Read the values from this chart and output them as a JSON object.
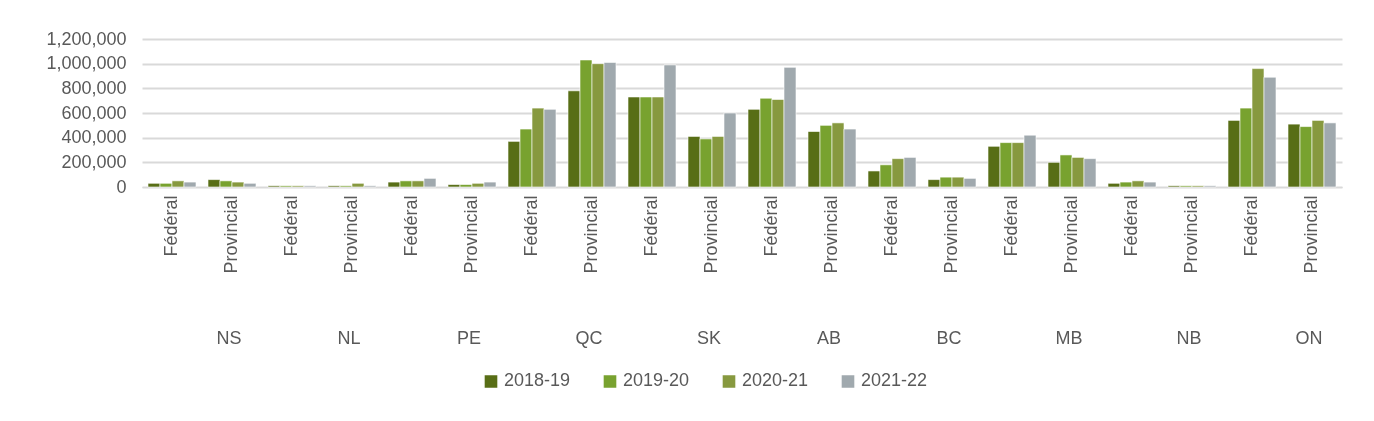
{
  "chart_data": {
    "type": "bar",
    "categories": [
      "Fédéral",
      "Provincial",
      "Fédéral",
      "Provincial",
      "Fédéral",
      "Provincial",
      "Fédéral",
      "Provincial",
      "Fédéral",
      "Provincial",
      "Fédéral",
      "Provincial",
      "Fédéral",
      "Provincial",
      "Fédéral",
      "Provincial",
      "Fédéral",
      "Provincial",
      "Fédéral",
      "Provincial"
    ],
    "annotations": [
      "NS",
      "NL",
      "PE",
      "QC",
      "SK",
      "AB",
      "BC",
      "MB",
      "NB",
      "ON"
    ],
    "series": [
      {
        "name": "2018-19",
        "color": "#586e16",
        "values": [
          30000,
          60000,
          10000,
          10000,
          40000,
          20000,
          370000,
          780000,
          730000,
          410000,
          630000,
          450000,
          130000,
          60000,
          330000,
          200000,
          30000,
          10000,
          540000,
          510000
        ]
      },
      {
        "name": "2019-20",
        "color": "#78a22f",
        "values": [
          30000,
          50000,
          10000,
          10000,
          50000,
          20000,
          470000,
          1030000,
          730000,
          390000,
          720000,
          500000,
          180000,
          80000,
          360000,
          260000,
          40000,
          10000,
          640000,
          490000
        ]
      },
      {
        "name": "2020-21",
        "color": "#87993f",
        "values": [
          50000,
          40000,
          10000,
          30000,
          50000,
          30000,
          640000,
          1000000,
          730000,
          410000,
          710000,
          520000,
          230000,
          80000,
          360000,
          240000,
          50000,
          10000,
          960000,
          540000
        ]
      },
      {
        "name": "2021-22",
        "color": "#a0a9ae",
        "values": [
          40000,
          30000,
          10000,
          10000,
          70000,
          40000,
          630000,
          1010000,
          990000,
          600000,
          970000,
          470000,
          240000,
          70000,
          420000,
          230000,
          40000,
          10000,
          890000,
          520000
        ]
      }
    ],
    "ylim": [
      0,
      1200000
    ],
    "yticks": [
      0,
      {
        "value": 200000,
        "label": "200,000"
      },
      {
        "value": 400000,
        "label": "400,000"
      },
      {
        "value": 600000,
        "label": "600,000"
      },
      {
        "value": 800000,
        "label": "800,000"
      },
      {
        "value": 1000000,
        "label": "1,000,000"
      },
      {
        "value": 1200000,
        "label": "1,200,000"
      }
    ],
    "grid": "y",
    "legend": "bottom"
  }
}
